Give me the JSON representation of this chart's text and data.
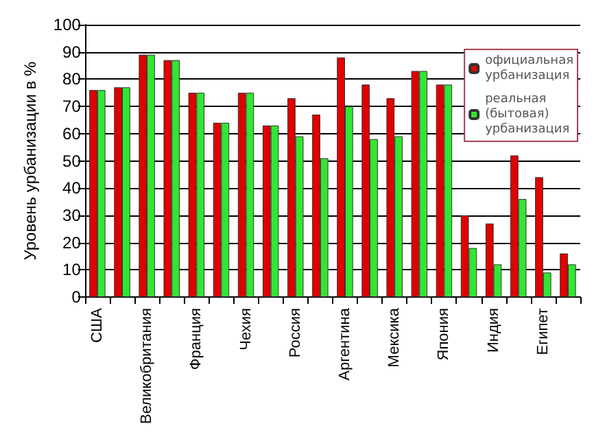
{
  "chart_data": {
    "type": "bar",
    "ylabel": "Уровень урбанизации в %",
    "categories": [
      "США",
      null,
      "Великобритания",
      null,
      "Франция",
      null,
      "Чехия",
      null,
      "Россия",
      null,
      "Аргентина",
      null,
      "Мексика",
      null,
      "Япония",
      null,
      "Индия",
      null,
      "Египет",
      null
    ],
    "series": [
      {
        "name": "официальная урбанизация",
        "color": "#e00000",
        "values": [
          76,
          77,
          89,
          87,
          75,
          64,
          75,
          63,
          73,
          67,
          88,
          78,
          73,
          83,
          78,
          30,
          27,
          52,
          44,
          16
        ]
      },
      {
        "name": "реальная (бытовая) урбанизация",
        "color": "#33e633",
        "values": [
          76,
          77,
          89,
          87,
          75,
          64,
          75,
          63,
          59,
          51,
          70,
          58,
          59,
          83,
          78,
          18,
          12,
          36,
          9,
          12
        ]
      }
    ],
    "ylim": [
      0,
      100
    ],
    "yticks": [
      0,
      10,
      20,
      30,
      40,
      50,
      60,
      70,
      80,
      90,
      100
    ],
    "grid": "y",
    "legend": "top right"
  }
}
